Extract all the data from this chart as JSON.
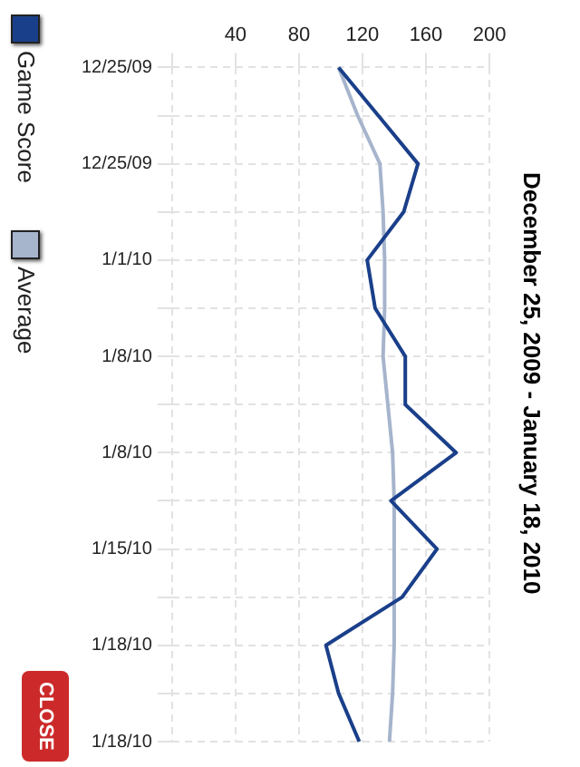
{
  "chart_data": {
    "type": "line",
    "title": "December 25, 2009 - January 18, 2010",
    "categories": [
      "12/25/09",
      null,
      "12/25/09",
      null,
      "1/1/10",
      null,
      "1/8/10",
      null,
      "1/8/10",
      null,
      "1/15/10",
      null,
      "1/18/10",
      null,
      "1/18/10"
    ],
    "series": [
      {
        "name": "Game Score",
        "color": "#1a3f8a",
        "values": [
          105,
          130,
          155,
          146,
          123,
          128,
          147,
          147,
          179,
          138,
          167,
          145,
          97,
          105,
          118
        ]
      },
      {
        "name": "Average",
        "color": "#a6b4cc",
        "values": [
          105,
          117,
          131,
          133,
          134,
          134,
          133,
          136,
          139,
          140,
          140,
          140,
          140,
          139,
          137
        ]
      }
    ],
    "orientation": "horizontal",
    "xlim": [
      0,
      200
    ],
    "xticks": [
      {
        "value": 0,
        "label": null
      },
      40,
      80,
      120,
      160,
      200
    ],
    "grid": true,
    "legend": "left",
    "marker": "none",
    "line_style": "solid",
    "annotations": [
      "CLOSE"
    ]
  }
}
